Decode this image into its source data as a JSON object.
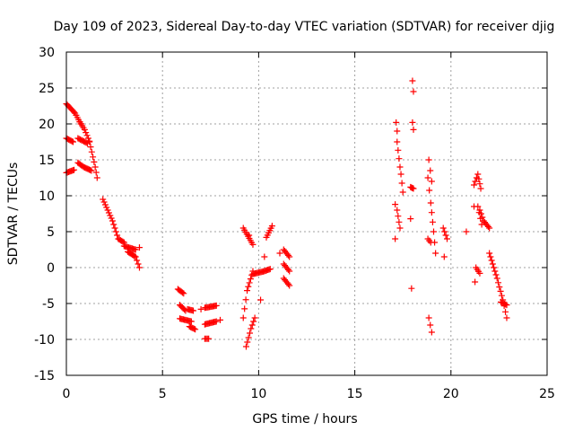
{
  "chart_data": {
    "type": "scatter",
    "title": "Day 109 of 2023, Sidereal Day-to-day VTEC variation (SDTVAR) for receiver djig",
    "xlabel": "GPS time / hours",
    "ylabel": "SDTVAR / TECUs",
    "xlim": [
      0,
      25
    ],
    "ylim": [
      -15,
      30
    ],
    "xticks": [
      0,
      5,
      10,
      15,
      20,
      25
    ],
    "yticks": [
      -15,
      -10,
      -5,
      0,
      5,
      10,
      15,
      20,
      25,
      30
    ],
    "grid": true,
    "marker": "+",
    "series_color": "#ff0000",
    "trace_step_hours": 0.06,
    "traces": [
      {
        "x": [
          0.0,
          0.45,
          0.75
        ],
        "y": [
          22.8,
          21.5,
          20.0
        ]
      },
      {
        "x": [
          0.7,
          0.95,
          1.2
        ],
        "y": [
          20.3,
          19.2,
          17.6
        ]
      },
      {
        "x": [
          1.2,
          1.5,
          1.6
        ],
        "y": [
          17.5,
          14.0,
          12.5
        ]
      },
      {
        "x": [
          0.0,
          0.35
        ],
        "y": [
          18.0,
          17.5
        ]
      },
      {
        "x": [
          0.6,
          1.1
        ],
        "y": [
          18.0,
          17.3
        ]
      },
      {
        "x": [
          0.0,
          0.4
        ],
        "y": [
          13.2,
          13.6
        ]
      },
      {
        "x": [
          0.6,
          0.9,
          1.3
        ],
        "y": [
          14.6,
          14.0,
          13.5
        ]
      },
      {
        "x": [
          1.9,
          2.4,
          2.7,
          3.0
        ],
        "y": [
          9.5,
          6.5,
          4.0,
          3.5
        ]
      },
      {
        "x": [
          3.0,
          3.6
        ],
        "y": [
          3.0,
          2.5
        ]
      },
      {
        "x": [
          3.2,
          3.6,
          3.8
        ],
        "y": [
          2.2,
          1.5,
          0.0
        ]
      },
      {
        "x": [
          5.8,
          6.1
        ],
        "y": [
          -3.0,
          -3.6
        ]
      },
      {
        "x": [
          5.9,
          6.2
        ],
        "y": [
          -5.2,
          -6.0
        ]
      },
      {
        "x": [
          5.9,
          6.5
        ],
        "y": [
          -7.1,
          -7.5
        ]
      },
      {
        "x": [
          6.3,
          6.6
        ],
        "y": [
          -5.8,
          -6.0
        ]
      },
      {
        "x": [
          6.4,
          6.7
        ],
        "y": [
          -8.2,
          -8.6
        ]
      },
      {
        "x": [
          7.2,
          7.8
        ],
        "y": [
          -5.6,
          -5.3
        ]
      },
      {
        "x": [
          7.2,
          7.8
        ],
        "y": [
          -7.9,
          -7.5
        ]
      },
      {
        "x": [
          7.2,
          7.4
        ],
        "y": [
          -9.9,
          -9.9
        ]
      },
      {
        "x": [
          9.2,
          9.7
        ],
        "y": [
          5.5,
          3.2
        ]
      },
      {
        "x": [
          9.2,
          9.4,
          9.7
        ],
        "y": [
          -7.0,
          -3.2,
          -0.5
        ]
      },
      {
        "x": [
          9.35,
          9.6,
          9.8
        ],
        "y": [
          -11.0,
          -8.5,
          -7.0
        ]
      },
      {
        "x": [
          9.7,
          10.3,
          10.6
        ],
        "y": [
          -0.9,
          -0.5,
          -0.2
        ]
      },
      {
        "x": [
          10.4,
          10.7
        ],
        "y": [
          4.2,
          5.8
        ]
      },
      {
        "x": [
          11.3,
          11.6
        ],
        "y": [
          2.5,
          1.5
        ]
      },
      {
        "x": [
          11.3,
          11.6
        ],
        "y": [
          -1.5,
          -2.5
        ]
      },
      {
        "x": [
          11.3,
          11.6
        ],
        "y": [
          0.5,
          -0.5
        ]
      },
      {
        "x": [
          17.2,
          17.35
        ],
        "y": [
          17.5,
          14.0
        ]
      },
      {
        "x": [
          17.2,
          17.35
        ],
        "y": [
          8.0,
          5.5
        ]
      },
      {
        "x": [
          17.4,
          17.5
        ],
        "y": [
          13.0,
          10.5
        ]
      },
      {
        "x": [
          18.0,
          18.05
        ],
        "y": [
          26.0,
          24.5
        ]
      },
      {
        "x": [
          18.0,
          18.05
        ],
        "y": [
          20.2,
          19.2
        ]
      },
      {
        "x": [
          17.9,
          18.05
        ],
        "y": [
          11.2,
          11.0
        ]
      },
      {
        "x": [
          18.8,
          18.95,
          19.1,
          19.2
        ],
        "y": [
          12.5,
          9.0,
          5.0,
          2.0
        ]
      },
      {
        "x": [
          18.85,
          19.0
        ],
        "y": [
          15.0,
          12.0
        ]
      },
      {
        "x": [
          18.85,
          19.0
        ],
        "y": [
          -7.0,
          -9.0
        ]
      },
      {
        "x": [
          18.8,
          18.95
        ],
        "y": [
          4.0,
          3.5
        ]
      },
      {
        "x": [
          19.6,
          19.8
        ],
        "y": [
          5.5,
          4.0
        ]
      },
      {
        "x": [
          21.2,
          21.4,
          21.55
        ],
        "y": [
          11.5,
          13.0,
          11.0
        ]
      },
      {
        "x": [
          21.4,
          21.6
        ],
        "y": [
          8.5,
          6.0
        ]
      },
      {
        "x": [
          21.3,
          21.5
        ],
        "y": [
          0.0,
          -0.8
        ]
      },
      {
        "x": [
          21.5,
          21.7,
          22.0
        ],
        "y": [
          8.0,
          6.5,
          5.5
        ]
      },
      {
        "x": [
          22.0,
          22.4,
          22.7,
          22.9
        ],
        "y": [
          2.0,
          -1.5,
          -4.5,
          -7.0
        ]
      },
      {
        "x": [
          22.6,
          22.9
        ],
        "y": [
          -4.8,
          -5.2
        ]
      }
    ],
    "points": [
      {
        "x": 17.15,
        "y": 20.2
      },
      {
        "x": 17.2,
        "y": 19.0
      },
      {
        "x": 17.1,
        "y": 8.8
      },
      {
        "x": 17.1,
        "y": 4.0
      },
      {
        "x": 17.9,
        "y": 6.8
      },
      {
        "x": 17.95,
        "y": -2.9
      },
      {
        "x": 19.65,
        "y": 1.5
      },
      {
        "x": 21.2,
        "y": 8.5
      },
      {
        "x": 21.25,
        "y": -2.0
      },
      {
        "x": 3.8,
        "y": 2.8
      },
      {
        "x": 10.3,
        "y": 1.5
      },
      {
        "x": 10.1,
        "y": -4.5
      },
      {
        "x": 7.0,
        "y": -5.8
      },
      {
        "x": 8.0,
        "y": -7.3
      },
      {
        "x": 9.5,
        "y": 4.5
      },
      {
        "x": 11.1,
        "y": 2.0
      },
      {
        "x": 20.8,
        "y": 5.0
      }
    ]
  }
}
